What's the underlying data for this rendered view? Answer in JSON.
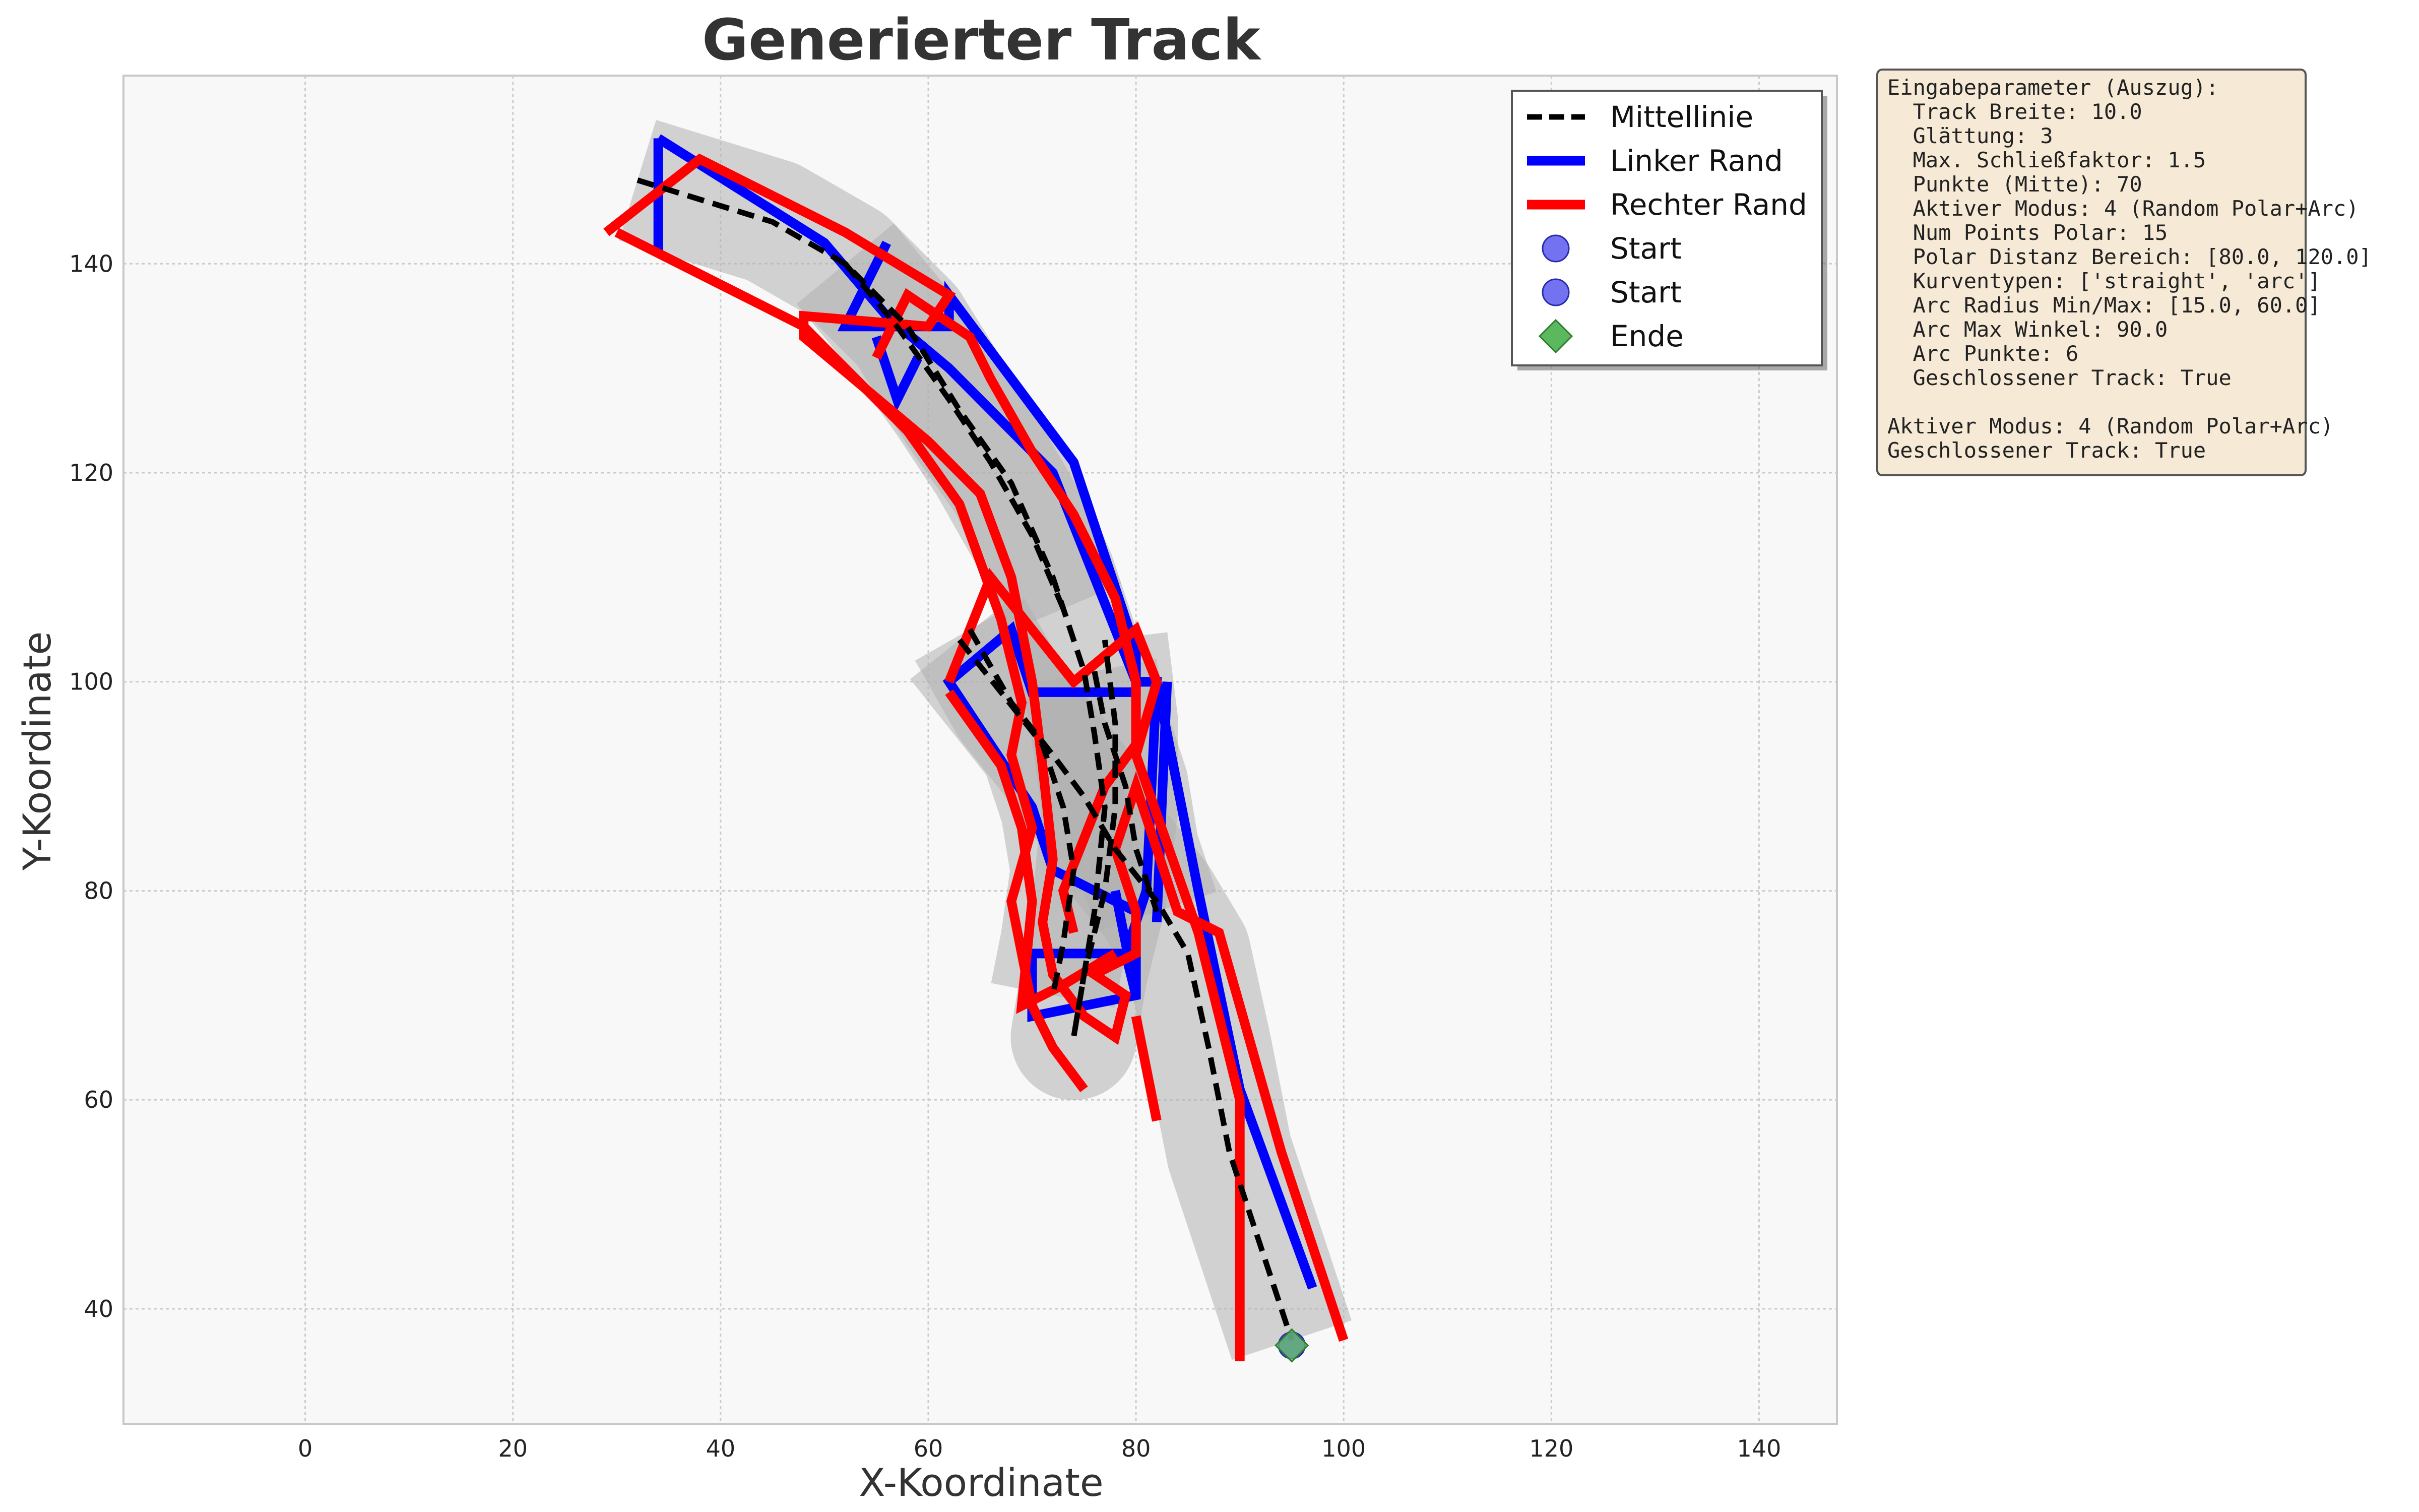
{
  "chart_data": {
    "type": "line",
    "title": "Generierter Track",
    "xlabel": "X-Koordinate",
    "ylabel": "Y-Koordinate",
    "xlim": [
      -17.5,
      147.5
    ],
    "ylim": [
      29,
      158
    ],
    "xticks": [
      0,
      20,
      40,
      60,
      80,
      100,
      120,
      140
    ],
    "yticks": [
      40,
      60,
      80,
      100,
      120,
      140
    ],
    "grid": true,
    "legend_position": "top-right",
    "legend": [
      {
        "label": "Mittellinie",
        "kind": "dashed-line",
        "color": "#000000"
      },
      {
        "label": "Linker Rand",
        "kind": "line",
        "color": "#0000ff"
      },
      {
        "label": "Rechter Rand",
        "kind": "line",
        "color": "#ff0000"
      },
      {
        "label": "Start",
        "kind": "circle",
        "color": "#5a5af0"
      },
      {
        "label": "Start",
        "kind": "circle",
        "color": "#5a5af0"
      },
      {
        "label": "Ende",
        "kind": "diamond",
        "color": "#5cb85c"
      }
    ],
    "series": [
      {
        "name": "Mittellinie",
        "color": "#000000",
        "dashed": true,
        "segments": [
          [
            [
              32,
              148
            ],
            [
              45,
              144
            ],
            [
              52,
              140
            ],
            [
              58,
              134
            ],
            [
              63,
              126
            ],
            [
              68,
              119
            ],
            [
              72,
              110
            ],
            [
              75,
              101
            ],
            [
              76,
              95
            ],
            [
              77,
              88
            ],
            [
              76,
              78
            ],
            [
              75,
              72
            ],
            [
              74,
              66
            ],
            [
              75,
              72
            ],
            [
              77,
              80
            ],
            [
              78,
              88
            ],
            [
              78,
              96
            ],
            [
              77,
              104
            ]
          ],
          [
            [
              52,
              140
            ],
            [
              57,
              134
            ],
            [
              62,
              127
            ],
            [
              66,
              121
            ],
            [
              70,
              114
            ],
            [
              73,
              107
            ]
          ],
          [
            [
              64,
              105
            ],
            [
              68,
              98
            ],
            [
              72,
              93
            ],
            [
              75,
              89
            ],
            [
              78,
              84
            ],
            [
              82,
              79
            ],
            [
              85,
              74
            ],
            [
              87,
              65
            ],
            [
              89,
              55
            ],
            [
              92,
              46
            ],
            [
              94,
              40
            ],
            [
              95,
              37
            ]
          ],
          [
            [
              63,
              104
            ],
            [
              67,
              99
            ],
            [
              71,
              94
            ],
            [
              73,
              88
            ],
            [
              74,
              82
            ],
            [
              73,
              75
            ],
            [
              72,
              70
            ]
          ],
          [
            [
              76,
              101
            ],
            [
              77,
              96
            ],
            [
              79,
              90
            ],
            [
              80,
              84
            ],
            [
              82,
              78
            ]
          ]
        ]
      },
      {
        "name": "Linker Rand",
        "color": "#0000ff",
        "segments": [
          [
            [
              34,
              152
            ],
            [
              34,
              141
            ]
          ],
          [
            [
              34,
              152
            ],
            [
              50,
              142
            ],
            [
              56,
              135
            ],
            [
              62,
              130
            ],
            [
              72,
              120
            ],
            [
              76,
              110
            ],
            [
              80,
              100
            ],
            [
              82,
              100
            ],
            [
              86,
              80
            ],
            [
              90,
              61
            ],
            [
              97,
              42
            ]
          ],
          [
            [
              56,
              142
            ],
            [
              52,
              134
            ],
            [
              62,
              134
            ],
            [
              62,
              137
            ],
            [
              74,
              121
            ],
            [
              80,
              103
            ],
            [
              80,
              99
            ],
            [
              70,
              99
            ],
            [
              68,
              105
            ],
            [
              62,
              100
            ],
            [
              66,
              94
            ],
            [
              70,
              88
            ],
            [
              72,
              82
            ],
            [
              80,
              78
            ],
            [
              80,
              70
            ],
            [
              70,
              68
            ],
            [
              70,
              74
            ],
            [
              80,
              74
            ]
          ],
          [
            [
              80,
              100
            ],
            [
              82,
              100
            ],
            [
              81,
              80
            ],
            [
              79,
              74
            ],
            [
              80,
              70
            ],
            [
              78,
              80
            ]
          ],
          [
            [
              83,
              100
            ],
            [
              82,
              77
            ]
          ],
          [
            [
              55,
              133
            ],
            [
              57,
              127
            ],
            [
              59,
              131
            ]
          ]
        ]
      },
      {
        "name": "Rechter Rand",
        "color": "#ff0000",
        "segments": [
          [
            [
              29,
              143
            ],
            [
              38,
              150
            ],
            [
              52,
              143
            ],
            [
              62,
              137
            ],
            [
              60,
              134
            ],
            [
              48,
              135
            ],
            [
              48,
              133
            ],
            [
              54,
              128
            ],
            [
              60,
              123
            ],
            [
              65,
              118
            ],
            [
              68,
              110
            ],
            [
              70,
              100
            ],
            [
              71,
              92
            ],
            [
              72,
              83
            ],
            [
              71,
              77
            ],
            [
              72,
              72
            ],
            [
              75,
              68
            ],
            [
              78,
              66
            ],
            [
              79,
              70
            ],
            [
              76,
              72
            ],
            [
              80,
              74
            ],
            [
              80,
              78
            ],
            [
              78,
              84
            ],
            [
              80,
              90
            ],
            [
              84,
              78
            ],
            [
              88,
              76
            ],
            [
              94,
              55
            ],
            [
              100,
              37
            ]
          ],
          [
            [
              30,
              143
            ],
            [
              48,
              134
            ],
            [
              58,
              124
            ],
            [
              63,
              117
            ],
            [
              67,
              106
            ],
            [
              69,
              98
            ],
            [
              68,
              93
            ],
            [
              70,
              86
            ],
            [
              68,
              79
            ],
            [
              70,
              69
            ],
            [
              72,
              65
            ],
            [
              75,
              61
            ]
          ],
          [
            [
              55,
              131
            ],
            [
              58,
              137
            ],
            [
              64,
              133
            ],
            [
              66,
              129
            ],
            [
              70,
              122
            ],
            [
              74,
              116
            ],
            [
              78,
              108
            ],
            [
              80,
              100
            ],
            [
              80,
              94
            ],
            [
              77,
              90
            ],
            [
              75,
              85
            ],
            [
              73,
              80
            ],
            [
              74,
              76
            ]
          ],
          [
            [
              62,
              100
            ],
            [
              66,
              110
            ],
            [
              74,
              100
            ],
            [
              80,
              105
            ],
            [
              82,
              100
            ],
            [
              80,
              93
            ],
            [
              86,
              76
            ],
            [
              90,
              60
            ],
            [
              90,
              35
            ]
          ],
          [
            [
              62,
              99
            ],
            [
              67,
              92
            ],
            [
              69,
              86
            ],
            [
              70,
              79
            ],
            [
              69,
              69
            ],
            [
              73,
              71
            ],
            [
              78,
              74
            ]
          ],
          [
            [
              82,
              58
            ],
            [
              80,
              68
            ]
          ]
        ]
      }
    ],
    "markers": [
      {
        "name": "Start",
        "shape": "circle",
        "x": 95,
        "y": 36.5,
        "color": "#5a5af0"
      },
      {
        "name": "Ende",
        "shape": "diamond",
        "x": 95,
        "y": 36.5,
        "color": "#5cb85c"
      }
    ]
  },
  "info_box": {
    "lines": [
      "Eingabeparameter (Auszug):",
      "  Track Breite: 10.0",
      "  Glättung: 3",
      "  Max. Schließfaktor: 1.5",
      "  Punkte (Mitte): 70",
      "  Aktiver Modus: 4 (Random Polar+Arc)",
      "  Num Points Polar: 15",
      "  Polar Distanz Bereich: [80.0, 120.0]",
      "  Kurventypen: ['straight', 'arc']",
      "  Arc Radius Min/Max: [15.0, 60.0]",
      "  Arc Max Winkel: 90.0",
      "  Arc Punkte: 6",
      "  Geschlossener Track: True",
      "",
      "Aktiver Modus: 4 (Random Polar+Arc)",
      "Geschlossener Track: True"
    ]
  }
}
